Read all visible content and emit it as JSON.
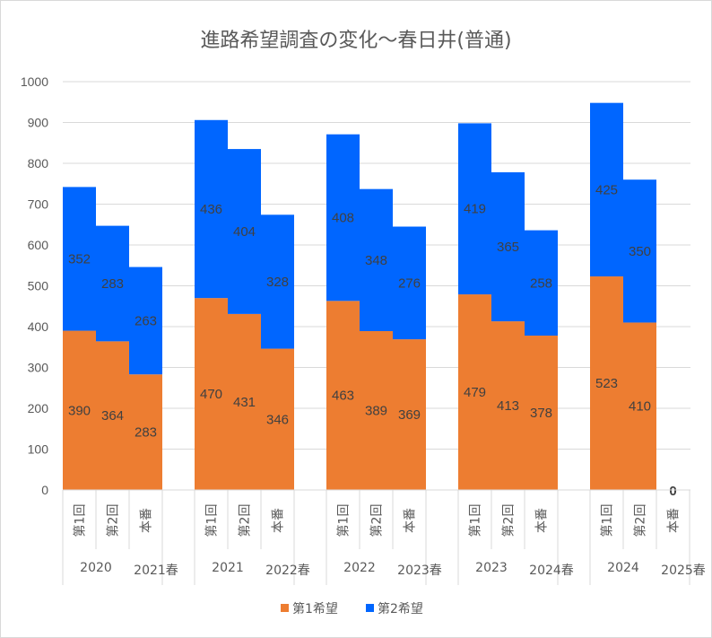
{
  "chart_data": {
    "type": "bar",
    "stacked": true,
    "title": "進路希望調査の変化～春日井(普通)",
    "ylim": [
      0,
      1000
    ],
    "yticks": [
      "0",
      "100",
      "200",
      "300",
      "400",
      "500",
      "600",
      "700",
      "800",
      "900",
      "1000"
    ],
    "grid": true,
    "legend_position": "bottom",
    "groups": [
      {
        "label": "2020",
        "label2": "2021春",
        "categories": [
          "第1回",
          "第2回",
          "本番"
        ]
      },
      {
        "label": "2021",
        "label2": "2022春",
        "categories": [
          "第1回",
          "第2回",
          "本番"
        ]
      },
      {
        "label": "2022",
        "label2": "2023春",
        "categories": [
          "第1回",
          "第2回",
          "本番"
        ]
      },
      {
        "label": "2023",
        "label2": "2024春",
        "categories": [
          "第1回",
          "第2回",
          "本番"
        ]
      },
      {
        "label": "2024",
        "label2": "2025春",
        "categories": [
          "第1回",
          "第2回",
          "本番"
        ]
      }
    ],
    "series": [
      {
        "name": "第1希望",
        "color": "#ED7D31",
        "values": [
          [
            390,
            364,
            283
          ],
          [
            470,
            431,
            346
          ],
          [
            463,
            389,
            369
          ],
          [
            479,
            413,
            378
          ],
          [
            523,
            410,
            0
          ]
        ]
      },
      {
        "name": "第2希望",
        "color": "#0066FF",
        "values": [
          [
            352,
            283,
            263
          ],
          [
            436,
            404,
            328
          ],
          [
            408,
            348,
            276
          ],
          [
            419,
            365,
            258
          ],
          [
            425,
            350,
            0
          ]
        ]
      }
    ],
    "special_labels": [
      {
        "group": 4,
        "category": 2,
        "text": "0"
      }
    ]
  }
}
